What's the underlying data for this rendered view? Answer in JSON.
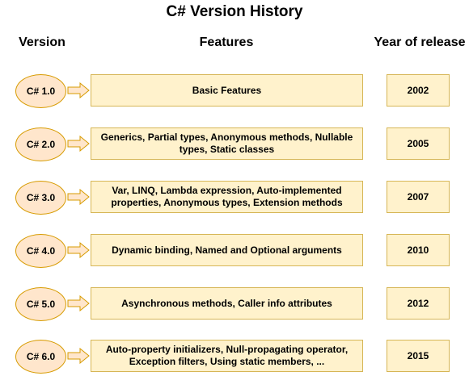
{
  "title": "C# Version History",
  "headers": {
    "version": "Version",
    "features": "Features",
    "year": "Year of release"
  },
  "colors": {
    "ellipse_fill": "#ffe6cc",
    "ellipse_stroke": "#d79b00",
    "box_fill": "#fff2cc",
    "box_stroke": "#d6b656"
  },
  "rows": [
    {
      "version": "C# 1.0",
      "features": "Basic Features",
      "year": "2002"
    },
    {
      "version": "C# 2.0",
      "features": "Generics, Partial types, Anonymous methods, Nullable types, Static classes",
      "year": "2005"
    },
    {
      "version": "C# 3.0",
      "features": "Var, LINQ, Lambda expression, Auto-implemented properties, Anonymous types, Extension methods",
      "year": "2007"
    },
    {
      "version": "C# 4.0",
      "features": "Dynamic binding, Named and Optional arguments",
      "year": "2010"
    },
    {
      "version": "C# 5.0",
      "features": "Asynchronous methods, Caller info attributes",
      "year": "2012"
    },
    {
      "version": "C# 6.0",
      "features": "Auto-property initializers, Null-propagating operator, Exception filters, Using static members, ...",
      "year": "2015"
    }
  ]
}
